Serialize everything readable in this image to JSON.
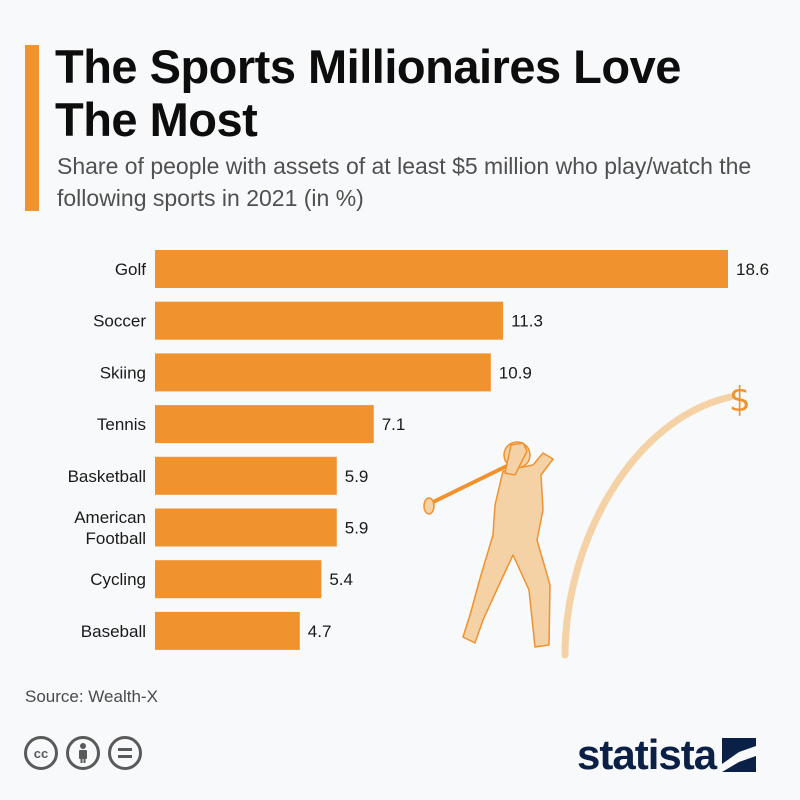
{
  "title": "The Sports Millionaires Love The Most",
  "subtitle": "Share of people with assets of at least $5 million who play/watch the following sports in 2021 (in %)",
  "source": "Source: Wealth-X",
  "brand": "statista",
  "license_icons": [
    "cc-icon",
    "person-icon",
    "equals-icon"
  ],
  "colors": {
    "accent": "#f0922e",
    "bar": "#f0922e",
    "illustration": "#f5d1a6",
    "brand": "#0a2046"
  },
  "chart_data": {
    "type": "bar",
    "orientation": "horizontal",
    "categories": [
      "Golf",
      "Soccer",
      "Skiing",
      "Tennis",
      "Basketball",
      "American Football",
      "Cycling",
      "Baseball"
    ],
    "category_lines": [
      [
        "Golf"
      ],
      [
        "Soccer"
      ],
      [
        "Skiing"
      ],
      [
        "Tennis"
      ],
      [
        "Basketball"
      ],
      [
        "American",
        "Football"
      ],
      [
        "Cycling"
      ],
      [
        "Baseball"
      ]
    ],
    "values": [
      18.6,
      11.3,
      10.9,
      7.1,
      5.9,
      5.9,
      5.4,
      4.7
    ],
    "data_labels": [
      "18.6",
      "11.3",
      "10.9",
      "7.1",
      "5.9",
      "5.9",
      "5.4",
      "4.7"
    ],
    "xlim": [
      0,
      18.6
    ],
    "grid": false,
    "legend": false
  }
}
